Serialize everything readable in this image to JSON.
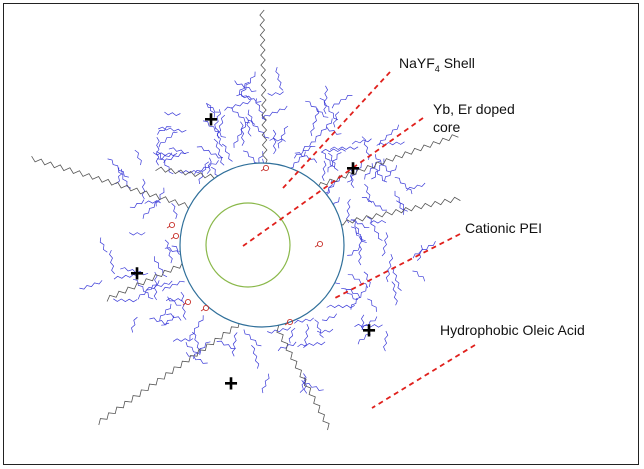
{
  "labels": {
    "shell_prefix": "NaYF",
    "shell_subscript": "4",
    "shell_suffix": " Shell",
    "core_line1": "Yb, Er doped",
    "core_line2": "core",
    "pei": "Cationic PEI",
    "oleic": "Hydrophobic Oleic Acid"
  },
  "charge_symbol": "+",
  "colors": {
    "pei_strands": "#3a3ad8",
    "shell_circle": "#2f6f9a",
    "core_circle": "#8ab84a",
    "leader_lines": "#e0201c",
    "oleic_chains": "#555555",
    "carboxyl": "#c8322c",
    "frame": "#222222"
  },
  "icons": [
    "plus-charge-icon"
  ]
}
